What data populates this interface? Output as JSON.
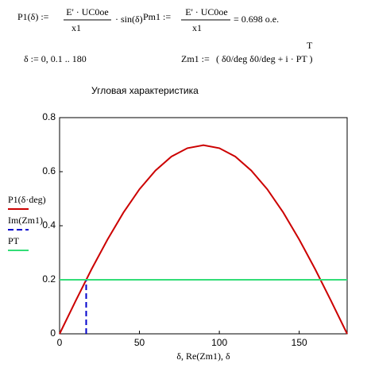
{
  "formulas": {
    "p1": {
      "lhs": "P1(δ) :=",
      "num": "E' · UC0oe",
      "den": "x1",
      "rhs": "· sin(δ)"
    },
    "pm1": {
      "lhs": "Pm1 :=",
      "num": "E' · UC0oe",
      "den": "x1",
      "rhs": "= 0.698 о.е."
    },
    "delta": "δ := 0, 0.1 .. 180",
    "zm1": {
      "lhs": "Zm1 :=",
      "body": "( δ0/deg    δ0/deg + i · PT )",
      "sup": "T"
    }
  },
  "chart_data": {
    "type": "line",
    "title": "Угловая характеристика",
    "x_label": "δ, Re(Zm1), δ",
    "xlim": [
      0,
      180
    ],
    "ylim": [
      0,
      0.8
    ],
    "xticks": [
      0,
      50,
      100,
      150
    ],
    "yticks": [
      0,
      0.2,
      0.4,
      0.6,
      0.8
    ],
    "series": [
      {
        "name": "P1(δ·deg)",
        "color": "#cc0000",
        "dash": false,
        "x": [
          0,
          10,
          20,
          30,
          40,
          50,
          60,
          70,
          80,
          90,
          100,
          110,
          120,
          130,
          140,
          150,
          160,
          170,
          180
        ],
        "values": [
          0,
          0.121,
          0.239,
          0.349,
          0.449,
          0.535,
          0.604,
          0.656,
          0.687,
          0.698,
          0.687,
          0.656,
          0.604,
          0.535,
          0.449,
          0.349,
          0.239,
          0.121,
          0
        ]
      },
      {
        "name": "Im(Zm1)",
        "color": "#0000cc",
        "dash": true,
        "x": [
          16.65,
          16.65
        ],
        "values": [
          0,
          0.2
        ]
      },
      {
        "name": "PT",
        "color": "#33dd77",
        "dash": false,
        "x": [
          0,
          180
        ],
        "values": [
          0.2,
          0.2
        ]
      }
    ]
  }
}
